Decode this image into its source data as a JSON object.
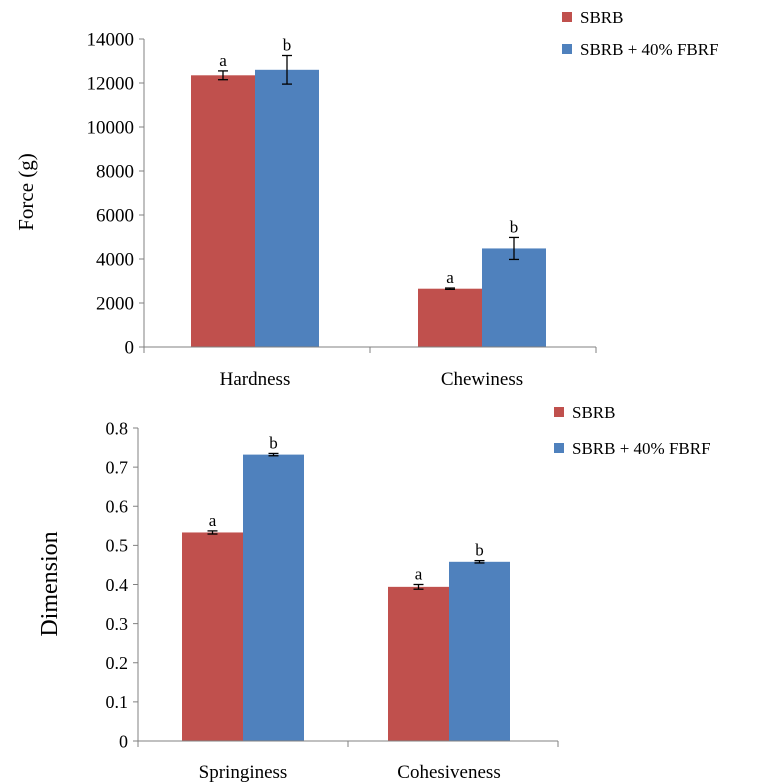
{
  "chart_data": [
    {
      "type": "bar",
      "categories": [
        "Hardness",
        "Chewiness"
      ],
      "series": [
        {
          "name": "SBRB",
          "color": "#C0504D",
          "values": [
            12350,
            2650
          ],
          "errors": [
            200,
            30
          ],
          "letters": [
            "a",
            "a"
          ]
        },
        {
          "name": "SBRB + 40% FBRF",
          "color": "#4F81BD",
          "values": [
            12600,
            4480
          ],
          "errors": [
            650,
            500
          ],
          "letters": [
            "b",
            "b"
          ]
        }
      ],
      "ylabel": "Force (g)",
      "xlabel": "",
      "ylim": [
        0,
        14000
      ],
      "yticks": [
        "0",
        "2000",
        "4000",
        "6000",
        "8000",
        "10000",
        "12000",
        "14000"
      ],
      "grid": false,
      "legend": "top-right"
    },
    {
      "type": "bar",
      "categories": [
        "Springiness",
        "Cohesiveness"
      ],
      "series": [
        {
          "name": "SBRB",
          "color": "#C0504D",
          "values": [
            0.533,
            0.394
          ],
          "errors": [
            0.004,
            0.006
          ],
          "letters": [
            "a",
            "a"
          ]
        },
        {
          "name": "SBRB + 40% FBRF",
          "color": "#4F81BD",
          "values": [
            0.732,
            0.458
          ],
          "errors": [
            0.003,
            0.003
          ],
          "letters": [
            "b",
            "b"
          ]
        }
      ],
      "ylabel": "Dimension",
      "xlabel": "",
      "ylim": [
        0,
        0.8
      ],
      "yticks": [
        "0",
        "0.1",
        "0.2",
        "0.3",
        "0.4",
        "0.5",
        "0.6",
        "0.7",
        "0.8"
      ],
      "grid": false,
      "legend": "top-right"
    }
  ]
}
